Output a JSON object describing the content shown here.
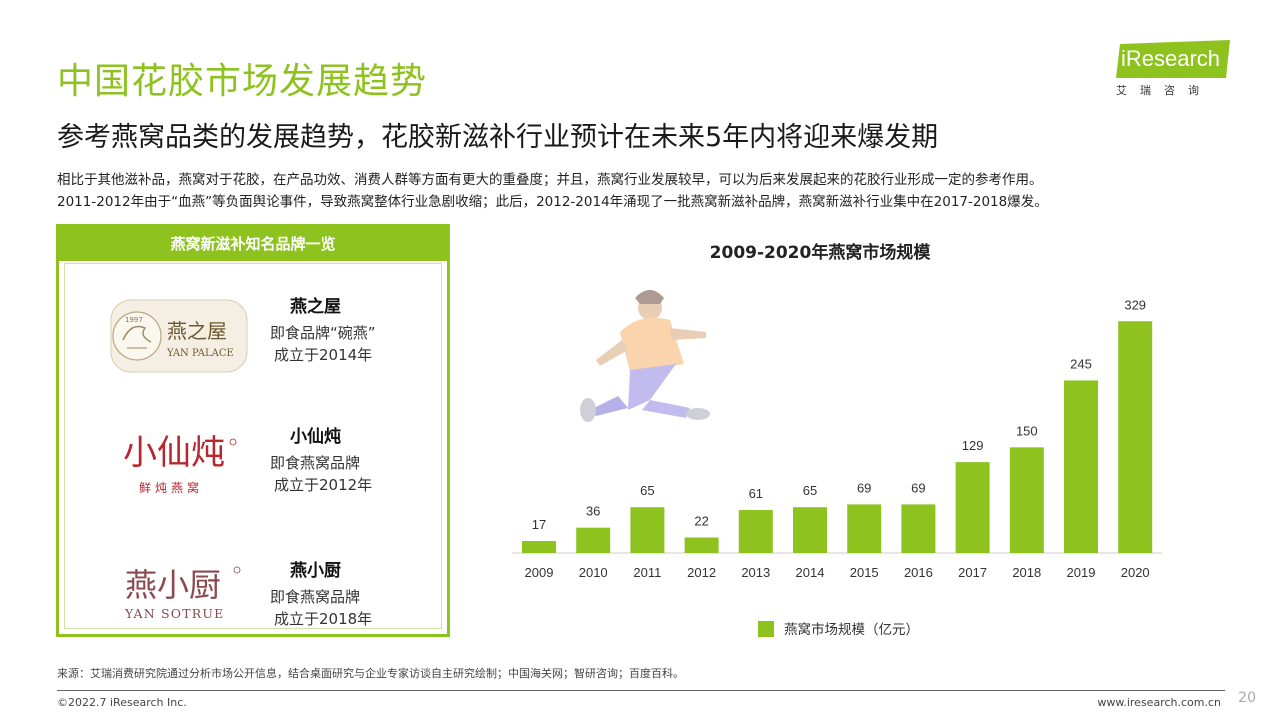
{
  "header": {
    "title": "中国花胶市场发展趋势",
    "subtitle": "参考燕窝品类的发展趋势，花胶新滋补行业预计在未来5年内将迎来爆发期",
    "desc_line1": "相比于其他滋补品，燕窝对于花胶，在产品功效、消费人群等方面有更大的重叠度；并且，燕窝行业发展较早，可以为后来发展起来的花胶行业形成一定的参考作用。",
    "desc_line2": "2011-2012年由于“血燕”等负面舆论事件，导致燕窝整体行业急剧收缩；此后，2012-2014年涌现了一批燕窝新滋补品牌，燕窝新滋补行业集中在2017-2018爆发。"
  },
  "logo": {
    "text": "iResearch",
    "sub": "艾瑞咨询"
  },
  "brand_panel": {
    "title": "燕窝新滋补知名品牌一览",
    "brands": [
      {
        "logo_main": "燕之屋",
        "logo_sub": "YAN PALACE",
        "logo_year": "1997",
        "name": "燕之屋",
        "line1": "即食品牌“碗燕”",
        "line2": "成立于2014年"
      },
      {
        "logo_main": "小仙炖",
        "logo_sub": "鲜炖燕窝",
        "name": "小仙炖",
        "line1": "即食燕窝品牌",
        "line2": "成立于2012年"
      },
      {
        "logo_main": "燕小厨",
        "logo_sub": "YAN SOTRUE",
        "name": "燕小厨",
        "line1": "即食燕窝品牌",
        "line2": "成立于2018年"
      }
    ]
  },
  "chart_data": {
    "type": "bar",
    "title": "2009-2020年燕窝市场规模",
    "categories": [
      "2009",
      "2010",
      "2011",
      "2012",
      "2013",
      "2014",
      "2015",
      "2016",
      "2017",
      "2018",
      "2019",
      "2020"
    ],
    "series": [
      {
        "name": "燕窝市场规模（亿元）",
        "values": [
          17,
          36,
          65,
          22,
          61,
          65,
          69,
          69,
          129,
          150,
          245,
          329
        ]
      }
    ],
    "ylim": [
      0,
      345
    ],
    "grid": false,
    "legend": "bottom",
    "color": "#8dc21f"
  },
  "footer": {
    "source": "来源：艾瑞消费研究院通过分析市场公开信息，结合桌面研究与企业专家访谈自主研究绘制；中国海关网；智研咨询；百度百科。",
    "copyright": "©2022.7 iResearch Inc.",
    "website": "www.iresearch.com.cn",
    "page": "20"
  }
}
